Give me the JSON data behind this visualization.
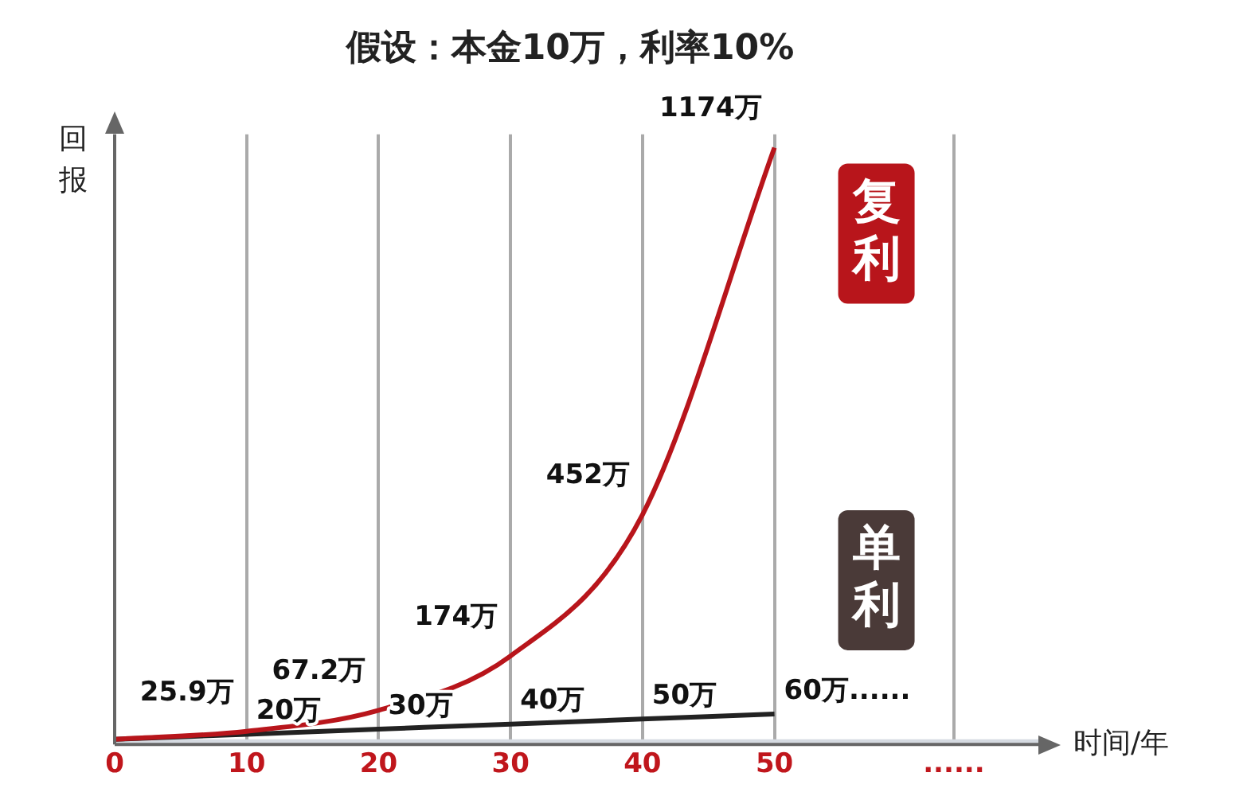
{
  "chart_data": {
    "type": "line",
    "title": "假设：本金10万，利率10%",
    "xlabel": "时间/年",
    "ylabel": "回报",
    "xlim": [
      0,
      70
    ],
    "xticks": [
      0,
      10,
      20,
      30,
      40,
      50,
      {
        "value": 63.6,
        "label": "......"
      }
    ],
    "ylim": [
      0,
      1200
    ],
    "tick_labels": "x",
    "grid": "x",
    "legend": false,
    "bands": [
      {
        "axis": "y",
        "from": 0,
        "to": 10,
        "color": "#d5dae1"
      }
    ],
    "series": [
      {
        "name": "复利",
        "color": "#b8151b",
        "x": [
          0,
          10,
          20,
          30,
          40,
          50
        ],
        "values": [
          10,
          25.9,
          67.2,
          174,
          452,
          1174
        ],
        "value_labels": [
          null,
          "25.9万",
          "67.2万",
          "174万",
          "452万",
          "1174万"
        ]
      },
      {
        "name": "单利",
        "color": "#222222",
        "x": [
          0,
          10,
          20,
          30,
          40,
          50
        ],
        "values": [
          10,
          20,
          30,
          40,
          50,
          60
        ],
        "value_labels": [
          null,
          "20万",
          "30万",
          "40万",
          "50万",
          "60万......"
        ]
      }
    ]
  }
}
